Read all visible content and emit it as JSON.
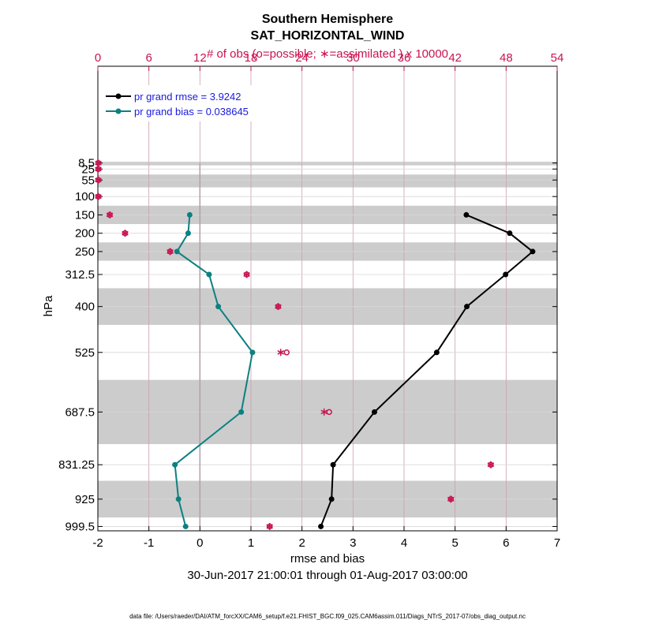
{
  "chart_data": {
    "type": "line",
    "title": "Southern Hemisphere",
    "subtitle": "SAT_HORIZONTAL_WIND",
    "xlabel": "rmse and bias",
    "ylabel": "hPa",
    "top_xlabel": "# of obs (o=possible; ∗=assimilated ) x 10000",
    "date_range": "30-Jun-2017 21:00:01 through 01-Aug-2017 03:00:00",
    "footer": "data file: /Users/raeder/DAI/ATM_forcXX/CAM6_setup/f.e21.FHIST_BGC.f09_025.CAM6assim.011/Diags_NTrS_2017-07/obs_diag_output.nc",
    "xlim": [
      -2,
      7
    ],
    "xticks": [
      -2,
      -1,
      0,
      1,
      2,
      3,
      4,
      5,
      6,
      7
    ],
    "top_xlim": [
      0,
      54
    ],
    "top_xticks": [
      0,
      6,
      12,
      18,
      24,
      30,
      36,
      42,
      48,
      54
    ],
    "levels": [
      8.5,
      25,
      55,
      100,
      150,
      200,
      250,
      312.5,
      400,
      525,
      687.5,
      831.25,
      925,
      999.5
    ],
    "level_labels": [
      "8.5",
      "25",
      "55",
      "100",
      "150",
      "200",
      "250",
      "312.5",
      "400",
      "525",
      "687.5",
      "831.25",
      "925",
      "999.5"
    ],
    "shaded_bands_hpa": [
      [
        5,
        15
      ],
      [
        40,
        75
      ],
      [
        125,
        175
      ],
      [
        225,
        275
      ],
      [
        350,
        450
      ],
      [
        600,
        775
      ],
      [
        875,
        975
      ]
    ],
    "series": [
      {
        "name": "pr grand rmse = 3.9242",
        "color": "#000000",
        "levels": [
          150,
          200,
          250,
          312.5,
          400,
          525,
          687.5,
          831.25,
          925,
          999.5
        ],
        "values": [
          5.22,
          6.07,
          6.52,
          5.99,
          5.23,
          4.64,
          3.42,
          2.61,
          2.58,
          2.37
        ]
      },
      {
        "name": "pr grand bias = 0.038645",
        "color": "#0d8080",
        "levels": [
          150,
          200,
          250,
          312.5,
          400,
          525,
          687.5,
          831.25,
          925,
          999.5
        ],
        "values": [
          -0.2,
          -0.23,
          -0.45,
          0.18,
          0.36,
          1.03,
          0.81,
          -0.49,
          -0.42,
          -0.28
        ]
      }
    ],
    "obs_counts": {
      "unit": "x 10000",
      "color": "#c8144f",
      "levels": [
        8.5,
        25,
        55,
        100,
        150,
        200,
        250,
        312.5,
        400,
        525,
        687.5,
        831.25,
        925,
        999.5
      ],
      "possible": [
        0.05,
        0.05,
        0.05,
        0.05,
        1.4,
        3.2,
        8.5,
        17.5,
        21.2,
        22.2,
        27.2,
        46.2,
        41.5,
        20.2
      ],
      "assimilated": [
        0.05,
        0.05,
        0.05,
        0.05,
        1.4,
        3.2,
        8.5,
        17.5,
        21.2,
        21.5,
        26.6,
        46.2,
        41.5,
        20.2
      ]
    }
  }
}
